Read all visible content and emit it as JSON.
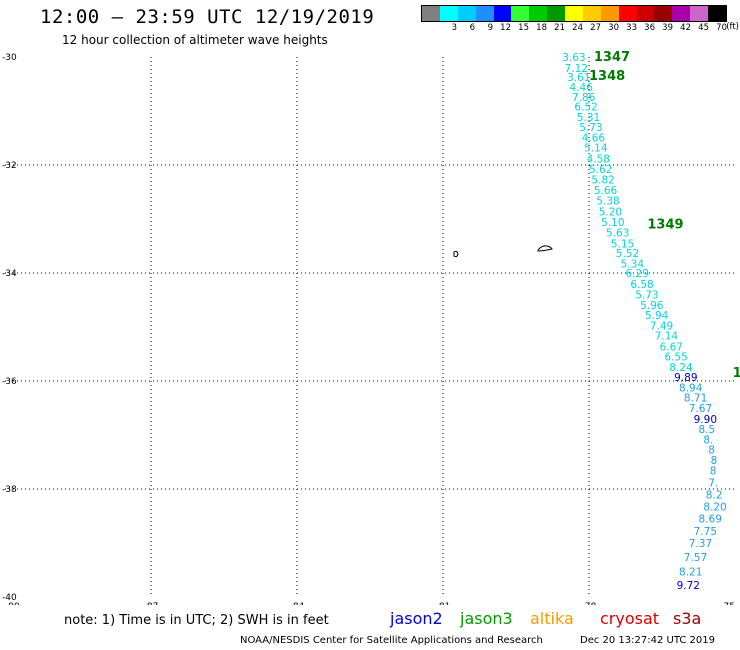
{
  "header": {
    "title": "12:00 – 23:59 UTC 12/19/2019",
    "subtitle": "12 hour collection of altimeter wave heights"
  },
  "legend": {
    "unit": "(ft)",
    "bins": [
      {
        "label": "",
        "color": "#808080"
      },
      {
        "label": "3",
        "color": "#00ffff"
      },
      {
        "label": "6",
        "color": "#00ccff"
      },
      {
        "label": "9",
        "color": "#1f8fff"
      },
      {
        "label": "12",
        "color": "#0000ff"
      },
      {
        "label": "15",
        "color": "#33ff33"
      },
      {
        "label": "18",
        "color": "#00cc00"
      },
      {
        "label": "21",
        "color": "#009900"
      },
      {
        "label": "24",
        "color": "#ffff00"
      },
      {
        "label": "27",
        "color": "#ffcc00"
      },
      {
        "label": "30",
        "color": "#ff9900"
      },
      {
        "label": "33",
        "color": "#ff0000"
      },
      {
        "label": "36",
        "color": "#cc0000"
      },
      {
        "label": "39",
        "color": "#990000"
      },
      {
        "label": "42",
        "color": "#aa00aa"
      },
      {
        "label": "45",
        "color": "#cc66cc"
      },
      {
        "label": "70",
        "color": "#000000"
      }
    ]
  },
  "map": {
    "lon_range": [
      -90,
      -75
    ],
    "lat_range": [
      -40,
      -30
    ],
    "lon_ticks": [
      "-90",
      "-87",
      "-84",
      "-81",
      "-78",
      "-75"
    ],
    "lat_ticks": [
      "-30",
      "-32",
      "-34",
      "-36",
      "-38",
      "-40"
    ],
    "tick_lon_values": [
      -90,
      -87,
      -84,
      -81,
      -78,
      -75
    ],
    "tick_lat_values": [
      -30,
      -32,
      -34,
      -36,
      -38,
      -40
    ],
    "grid": "dotted",
    "colors": {
      "low": "#00d5dd",
      "mid": "#1fa0e6",
      "high": "#0000c8",
      "pass": "#007a00"
    },
    "pass_labels": [
      {
        "text": "1347",
        "lon": -77.9,
        "lat": -30.0
      },
      {
        "text": "1348",
        "lon": -78.0,
        "lat": -30.35
      },
      {
        "text": "1349",
        "lon": -76.8,
        "lat": -33.1
      },
      {
        "text": "1",
        "lon": -75.05,
        "lat": -35.85
      }
    ],
    "wave_heights": [
      {
        "text": "3.63",
        "lon": -78.55,
        "lat": -30.0,
        "level": "low"
      },
      {
        "text": "7.12",
        "lon": -78.5,
        "lat": -30.2,
        "level": "low"
      },
      {
        "text": "3.61",
        "lon": -78.45,
        "lat": -30.37,
        "level": "low"
      },
      {
        "text": "4.46",
        "lon": -78.4,
        "lat": -30.56,
        "level": "low"
      },
      {
        "text": "7.86",
        "lon": -78.35,
        "lat": -30.74,
        "level": "low"
      },
      {
        "text": "6.52",
        "lon": -78.3,
        "lat": -30.92,
        "level": "low"
      },
      {
        "text": "5.31",
        "lon": -78.25,
        "lat": -31.11,
        "level": "low"
      },
      {
        "text": "5.73",
        "lon": -78.2,
        "lat": -31.3,
        "level": "low"
      },
      {
        "text": "4.66",
        "lon": -78.15,
        "lat": -31.49,
        "level": "low"
      },
      {
        "text": "5.14",
        "lon": -78.1,
        "lat": -31.68,
        "level": "low"
      },
      {
        "text": "4.58",
        "lon": -78.05,
        "lat": -31.88,
        "level": "low"
      },
      {
        "text": "5.62",
        "lon": -78.0,
        "lat": -32.07,
        "level": "low"
      },
      {
        "text": "5.82",
        "lon": -77.95,
        "lat": -32.27,
        "level": "low"
      },
      {
        "text": "5.66",
        "lon": -77.9,
        "lat": -32.46,
        "level": "low"
      },
      {
        "text": "5.38",
        "lon": -77.85,
        "lat": -32.66,
        "level": "low"
      },
      {
        "text": "5.20",
        "lon": -77.8,
        "lat": -32.86,
        "level": "low"
      },
      {
        "text": "5.10",
        "lon": -77.75,
        "lat": -33.06,
        "level": "low"
      },
      {
        "text": "5.63",
        "lon": -77.65,
        "lat": -33.25,
        "level": "low"
      },
      {
        "text": "5.15",
        "lon": -77.55,
        "lat": -33.45,
        "level": "low"
      },
      {
        "text": "5.52",
        "lon": -77.45,
        "lat": -33.63,
        "level": "low"
      },
      {
        "text": "5.34",
        "lon": -77.35,
        "lat": -33.82,
        "level": "low"
      },
      {
        "text": "6.29",
        "lon": -77.25,
        "lat": -34.0,
        "level": "low"
      },
      {
        "text": "6.58",
        "lon": -77.15,
        "lat": -34.2,
        "level": "low"
      },
      {
        "text": "5.73",
        "lon": -77.05,
        "lat": -34.4,
        "level": "low"
      },
      {
        "text": "5.96",
        "lon": -76.95,
        "lat": -34.59,
        "level": "low"
      },
      {
        "text": "5.94",
        "lon": -76.85,
        "lat": -34.78,
        "level": "low"
      },
      {
        "text": "7.49",
        "lon": -76.75,
        "lat": -34.97,
        "level": "low"
      },
      {
        "text": "7.14",
        "lon": -76.65,
        "lat": -35.16,
        "level": "low"
      },
      {
        "text": "6.67",
        "lon": -76.55,
        "lat": -35.36,
        "level": "low"
      },
      {
        "text": "6.55",
        "lon": -76.45,
        "lat": -35.55,
        "level": "low"
      },
      {
        "text": "8.24",
        "lon": -76.35,
        "lat": -35.74,
        "level": "low"
      },
      {
        "text": "9.89",
        "lon": -76.25,
        "lat": -35.93,
        "level": "high"
      },
      {
        "text": "8.94",
        "lon": -76.15,
        "lat": -36.12,
        "level": "mid"
      },
      {
        "text": "8.71",
        "lon": -76.05,
        "lat": -36.31,
        "level": "mid"
      },
      {
        "text": "7.67",
        "lon": -75.95,
        "lat": -36.5,
        "level": "mid"
      },
      {
        "text": "9.90",
        "lon": -75.85,
        "lat": -36.7,
        "level": "high"
      },
      {
        "text": "8.5",
        "lon": -75.75,
        "lat": -36.89,
        "level": "mid"
      },
      {
        "text": "8.",
        "lon": -75.65,
        "lat": -37.08,
        "level": "mid"
      },
      {
        "text": "8",
        "lon": -75.55,
        "lat": -37.27,
        "level": "mid"
      },
      {
        "text": "8",
        "lon": -75.5,
        "lat": -37.46,
        "level": "mid"
      },
      {
        "text": "8",
        "lon": -75.52,
        "lat": -37.66,
        "level": "mid"
      },
      {
        "text": "7.",
        "lon": -75.55,
        "lat": -37.88,
        "level": "mid"
      },
      {
        "text": "8.2",
        "lon": -75.6,
        "lat": -38.1,
        "level": "mid"
      },
      {
        "text": "8.20",
        "lon": -75.65,
        "lat": -38.32,
        "level": "mid"
      },
      {
        "text": "8.69",
        "lon": -75.75,
        "lat": -38.55,
        "level": "mid"
      },
      {
        "text": "7.75",
        "lon": -75.85,
        "lat": -38.78,
        "level": "mid"
      },
      {
        "text": "7.37",
        "lon": -75.95,
        "lat": -39.0,
        "level": "mid"
      },
      {
        "text": "7.57",
        "lon": -76.05,
        "lat": -39.26,
        "level": "mid"
      },
      {
        "text": "8.21",
        "lon": -76.15,
        "lat": -39.53,
        "level": "mid"
      },
      {
        "text": "9.72",
        "lon": -76.2,
        "lat": -39.78,
        "level": "high"
      }
    ]
  },
  "footer": {
    "note": "note: 1) Time is in UTC; 2) SWH is in feet",
    "satellites": [
      {
        "name": "jason2",
        "color": "#0000dd"
      },
      {
        "name": "jason3",
        "color": "#009900"
      },
      {
        "name": "altika",
        "color": "#ff9900"
      },
      {
        "name": "cryosat",
        "color": "#dd0000"
      },
      {
        "name": "s3a",
        "color": "#990000"
      }
    ],
    "credit": "NOAA/NESDIS Center for Satellite Applications and Research",
    "timestamp": "Dec 20 13:27:42 UTC 2019"
  }
}
